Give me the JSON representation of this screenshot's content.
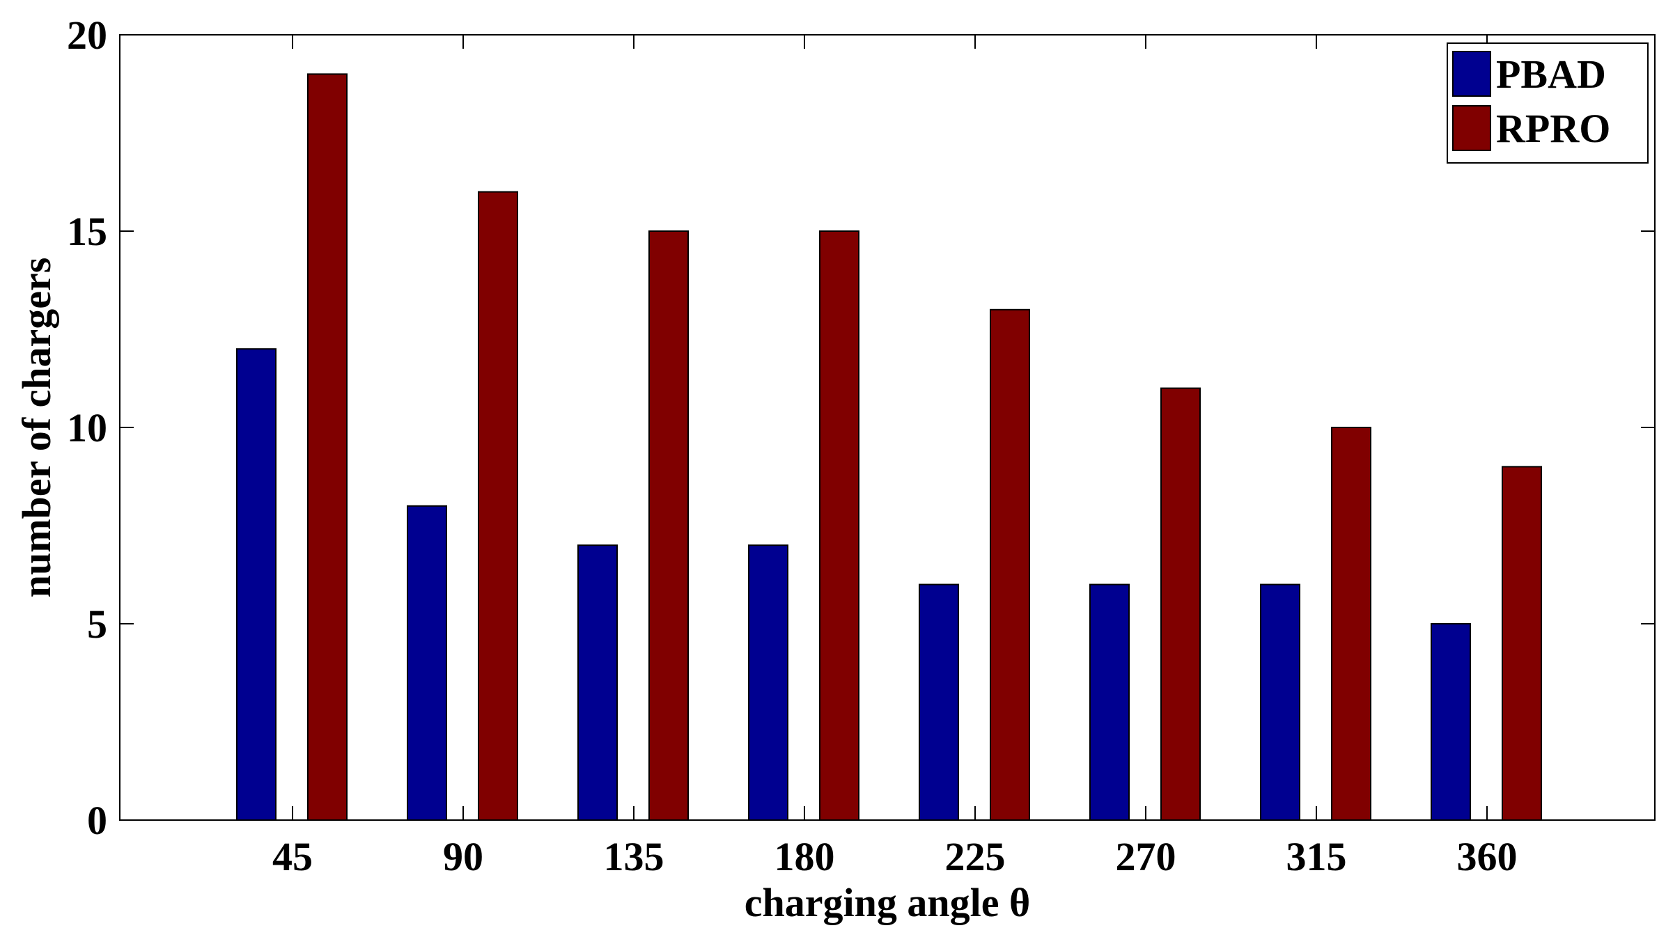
{
  "chart_data": {
    "type": "bar",
    "title": "",
    "xlabel": "charging angle θ",
    "ylabel": "number of chargers",
    "categories": [
      "45",
      "90",
      "135",
      "180",
      "225",
      "270",
      "315",
      "360"
    ],
    "series": [
      {
        "name": "PBAD",
        "values": [
          12,
          8,
          7,
          7,
          6,
          6,
          6,
          5
        ],
        "color": "#000090"
      },
      {
        "name": "RPRO",
        "values": [
          19,
          16,
          15,
          15,
          13,
          11,
          10,
          9
        ],
        "color": "#800000"
      }
    ],
    "ylim": [
      0,
      20
    ],
    "yticks": [
      "0",
      "5",
      "10",
      "15",
      "20"
    ],
    "grid": false,
    "legend_position": "top-right"
  }
}
